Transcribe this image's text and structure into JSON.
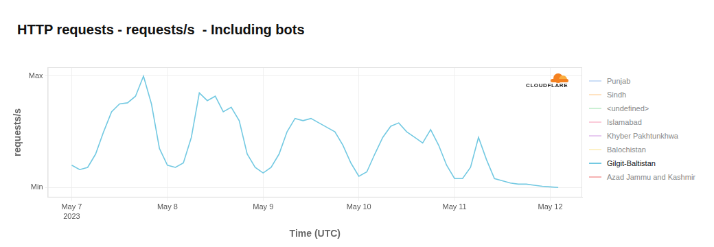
{
  "chart_data": {
    "type": "line",
    "title": "HTTP requests - requests/s  - Including bots",
    "x_label": "Time (UTC)",
    "y_label": "requests/s",
    "annotation": "CLOUDFLARE",
    "categories": [
      null,
      null,
      null,
      "May 7\n2023",
      null,
      null,
      null,
      null,
      null,
      null,
      null,
      null,
      null,
      null,
      null,
      "May 8",
      null,
      null,
      null,
      null,
      null,
      null,
      null,
      null,
      null,
      null,
      null,
      "May 9",
      null,
      null,
      null,
      null,
      null,
      null,
      null,
      null,
      null,
      null,
      null,
      "May 10",
      null,
      null,
      null,
      null,
      null,
      null,
      null,
      null,
      null,
      null,
      null,
      "May 11",
      null,
      null,
      null,
      null,
      null,
      null,
      null,
      null,
      null,
      null,
      null,
      "May 12",
      null,
      null,
      null,
      null
    ],
    "series": [
      {
        "name": "Punjab",
        "color": "#a8c8f0",
        "values": [
          null,
          null,
          null,
          null,
          null,
          null,
          null,
          null,
          null,
          null,
          null,
          null,
          null,
          null,
          null,
          null,
          null,
          null,
          null,
          null,
          null,
          null,
          null,
          null,
          null,
          null,
          null,
          null,
          null,
          null,
          null,
          null,
          null,
          null,
          null,
          null,
          null,
          null,
          null,
          null,
          null,
          null,
          null,
          null,
          null,
          null,
          null,
          null,
          null,
          null,
          null,
          null,
          null,
          null,
          null,
          null,
          null,
          null,
          null,
          null,
          null,
          null,
          null,
          null,
          null,
          null,
          null,
          null
        ]
      },
      {
        "name": "Sindh",
        "color": "#ffd19a",
        "values": [
          null,
          null,
          null,
          null,
          null,
          null,
          null,
          null,
          null,
          null,
          null,
          null,
          null,
          null,
          null,
          null,
          null,
          null,
          null,
          null,
          null,
          null,
          null,
          null,
          null,
          null,
          null,
          null,
          null,
          null,
          null,
          null,
          null,
          null,
          null,
          null,
          null,
          null,
          null,
          null,
          null,
          null,
          null,
          null,
          null,
          null,
          null,
          null,
          null,
          null,
          null,
          null,
          null,
          null,
          null,
          null,
          null,
          null,
          null,
          null,
          null,
          null,
          null,
          null,
          null,
          null,
          null,
          null
        ]
      },
      {
        "name": "<undefined>",
        "color": "#a8e6b8",
        "values": [
          null,
          null,
          null,
          null,
          null,
          null,
          null,
          null,
          null,
          null,
          null,
          null,
          null,
          null,
          null,
          null,
          null,
          null,
          null,
          null,
          null,
          null,
          null,
          null,
          null,
          null,
          null,
          null,
          null,
          null,
          null,
          null,
          null,
          null,
          null,
          null,
          null,
          null,
          null,
          null,
          null,
          null,
          null,
          null,
          null,
          null,
          null,
          null,
          null,
          null,
          null,
          null,
          null,
          null,
          null,
          null,
          null,
          null,
          null,
          null,
          null,
          null,
          null,
          null,
          null,
          null,
          null,
          null
        ]
      },
      {
        "name": "Islamabad",
        "color": "#f8a8c0",
        "values": [
          null,
          null,
          null,
          null,
          null,
          null,
          null,
          null,
          null,
          null,
          null,
          null,
          null,
          null,
          null,
          null,
          null,
          null,
          null,
          null,
          null,
          null,
          null,
          null,
          null,
          null,
          null,
          null,
          null,
          null,
          null,
          null,
          null,
          null,
          null,
          null,
          null,
          null,
          null,
          null,
          null,
          null,
          null,
          null,
          null,
          null,
          null,
          null,
          null,
          null,
          null,
          null,
          null,
          null,
          null,
          null,
          null,
          null,
          null,
          null,
          null,
          null,
          null,
          null,
          null,
          null,
          null,
          null
        ]
      },
      {
        "name": "Khyber Pakhtunkhwa",
        "color": "#d8a8e8",
        "values": [
          null,
          null,
          null,
          null,
          null,
          null,
          null,
          null,
          null,
          null,
          null,
          null,
          null,
          null,
          null,
          null,
          null,
          null,
          null,
          null,
          null,
          null,
          null,
          null,
          null,
          null,
          null,
          null,
          null,
          null,
          null,
          null,
          null,
          null,
          null,
          null,
          null,
          null,
          null,
          null,
          null,
          null,
          null,
          null,
          null,
          null,
          null,
          null,
          null,
          null,
          null,
          null,
          null,
          null,
          null,
          null,
          null,
          null,
          null,
          null,
          null,
          null,
          null,
          null,
          null,
          null,
          null,
          null
        ]
      },
      {
        "name": "Balochistan",
        "color": "#fce8a0",
        "values": [
          null,
          null,
          null,
          null,
          null,
          null,
          null,
          null,
          null,
          null,
          null,
          null,
          null,
          null,
          null,
          null,
          null,
          null,
          null,
          null,
          null,
          null,
          null,
          null,
          null,
          null,
          null,
          null,
          null,
          null,
          null,
          null,
          null,
          null,
          null,
          null,
          null,
          null,
          null,
          null,
          null,
          null,
          null,
          null,
          null,
          null,
          null,
          null,
          null,
          null,
          null,
          null,
          null,
          null,
          null,
          null,
          null,
          null,
          null,
          null,
          null,
          null,
          null,
          null,
          null,
          null,
          null,
          null
        ]
      },
      {
        "name": "Gilgit-Baltistan",
        "color": "#73c9e2",
        "values": [
          null,
          null,
          null,
          20,
          16,
          18,
          30,
          50,
          68,
          75,
          76,
          82,
          100,
          75,
          35,
          20,
          18,
          22,
          45,
          85,
          78,
          82,
          68,
          72,
          60,
          30,
          18,
          13,
          18,
          30,
          50,
          62,
          60,
          62,
          58,
          54,
          50,
          38,
          22,
          10,
          14,
          30,
          45,
          55,
          58,
          50,
          45,
          40,
          52,
          38,
          20,
          8,
          8,
          18,
          45,
          25,
          8,
          6,
          4,
          3,
          3,
          2,
          1,
          0.5,
          0,
          null,
          null,
          null
        ]
      },
      {
        "name": "Azad Jammu and Kashmir",
        "color": "#f08080",
        "values": [
          null,
          null,
          null,
          null,
          null,
          null,
          null,
          null,
          null,
          null,
          null,
          null,
          null,
          null,
          null,
          null,
          null,
          null,
          null,
          null,
          null,
          null,
          null,
          null,
          null,
          null,
          null,
          null,
          null,
          null,
          null,
          null,
          null,
          null,
          null,
          null,
          null,
          null,
          null,
          null,
          null,
          null,
          null,
          null,
          null,
          null,
          null,
          null,
          null,
          null,
          null,
          null,
          null,
          null,
          null,
          null,
          null,
          null,
          null,
          null,
          null,
          null,
          null,
          null,
          null,
          null,
          null,
          null
        ]
      }
    ],
    "ylim": [
      -9,
      108
    ],
    "yticks": [
      {
        "value": 0,
        "label": "Min"
      },
      {
        "value": 100,
        "label": "Max"
      }
    ],
    "grid": true,
    "legend": "right"
  }
}
